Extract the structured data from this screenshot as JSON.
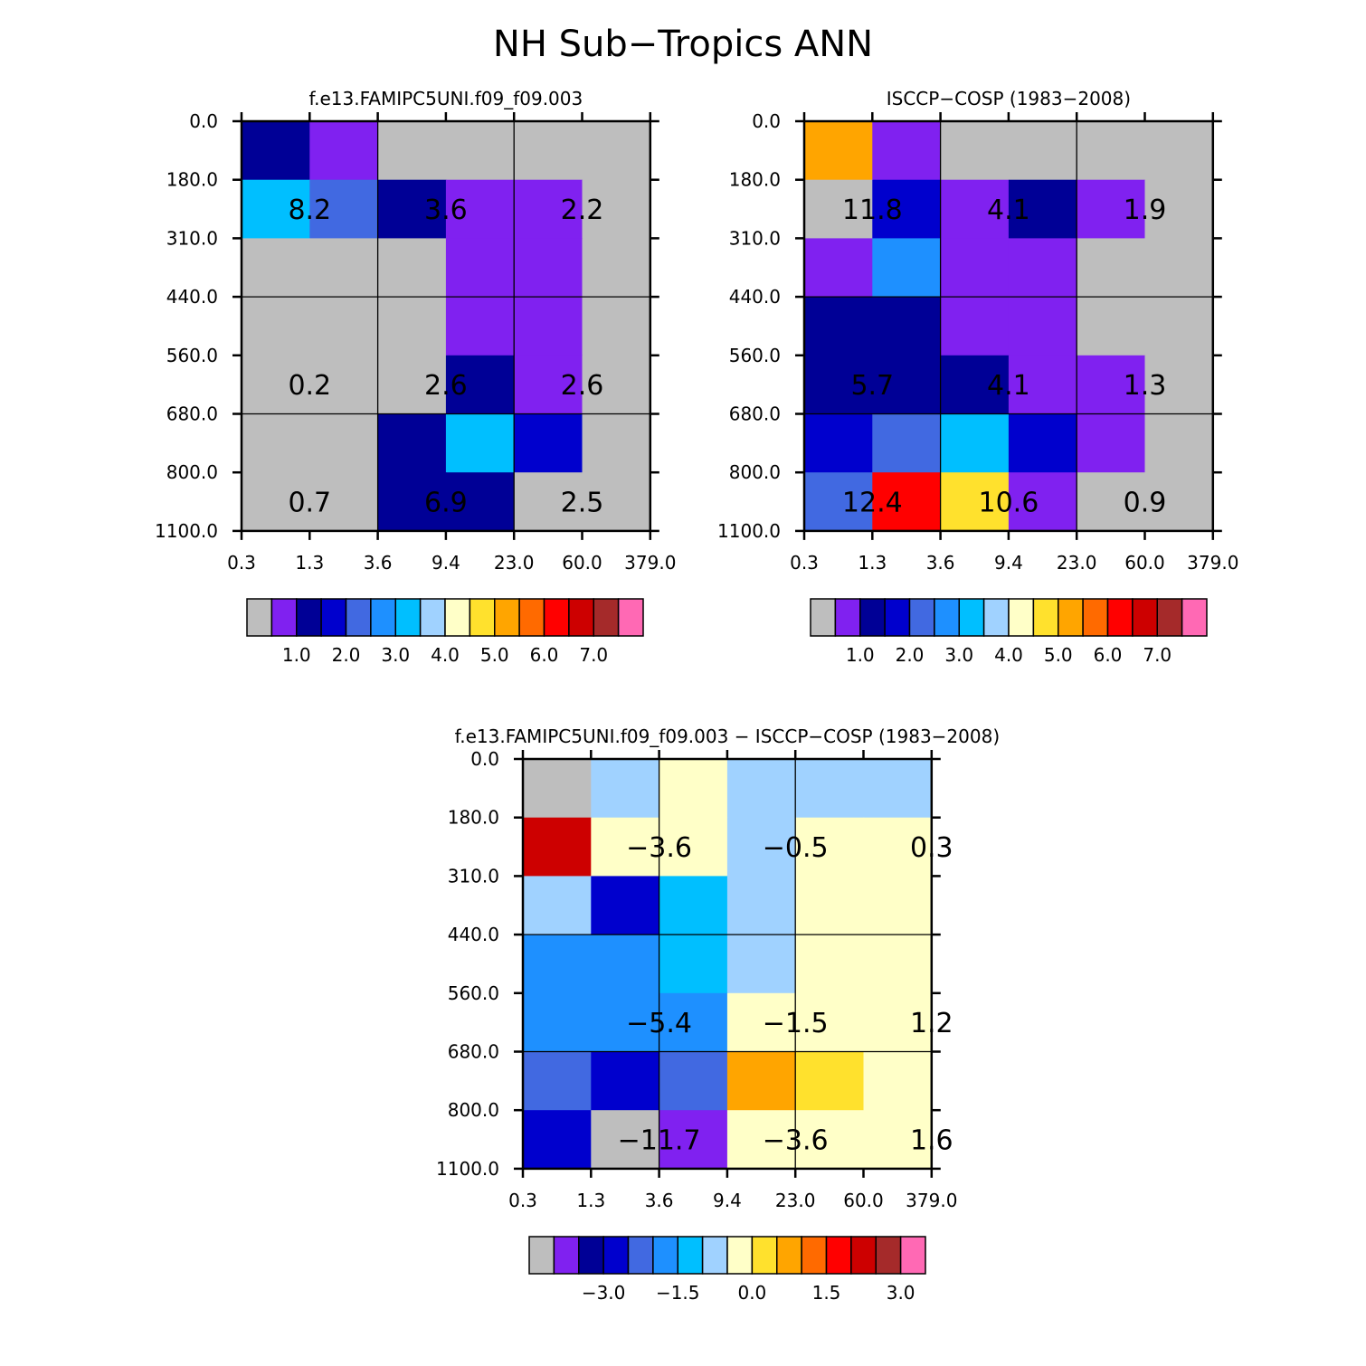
{
  "page_title": "NH Sub−Tropics ANN",
  "palette": [
    "#bebebe",
    "#8021f0",
    "#000096",
    "#0000cd",
    "#4169e1",
    "#1e90ff",
    "#00bfff",
    "#a0d2ff",
    "#ffffc8",
    "#ffe12d",
    "#ffa500",
    "#ff6a00",
    "#ff0000",
    "#cd0000",
    "#a52a2a",
    "#ff69b4"
  ],
  "chart_data": [
    {
      "type": "heatmap",
      "title": "f.e13.FAMIPC5UNI.f09_f09.003",
      "x_tick_labels": [
        "0.3",
        "1.3",
        "3.6",
        "9.4",
        "23.0",
        "60.0",
        "379.0"
      ],
      "y_tick_labels": [
        "0.0",
        "180.0",
        "310.0",
        "440.0",
        "560.0",
        "680.0",
        "800.0",
        "1100.0"
      ],
      "cells": [
        [
          2,
          1,
          0,
          0,
          0,
          0
        ],
        [
          6,
          4,
          2,
          1,
          1,
          0
        ],
        [
          0,
          0,
          0,
          1,
          1,
          0
        ],
        [
          0,
          0,
          0,
          1,
          1,
          0
        ],
        [
          0,
          0,
          0,
          2,
          1,
          0
        ],
        [
          0,
          0,
          2,
          6,
          3,
          0
        ],
        [
          0,
          0,
          2,
          2,
          0,
          0
        ]
      ],
      "annotations": [
        {
          "row": 1,
          "col": 0,
          "text": "8.2"
        },
        {
          "row": 1,
          "col": 2,
          "text": "3.6"
        },
        {
          "row": 1,
          "col": 4,
          "text": "2.2"
        },
        {
          "row": 4,
          "col": 0,
          "text": "0.2"
        },
        {
          "row": 4,
          "col": 2,
          "text": "2.6"
        },
        {
          "row": 4,
          "col": 4,
          "text": "2.6"
        },
        {
          "row": 6,
          "col": 0,
          "text": "0.7"
        },
        {
          "row": 6,
          "col": 2,
          "text": "6.9"
        },
        {
          "row": 6,
          "col": 4,
          "text": "2.5"
        }
      ],
      "colorbar": {
        "labels": [
          "1.0",
          "2.0",
          "3.0",
          "4.0",
          "5.0",
          "6.0",
          "7.0"
        ]
      }
    },
    {
      "type": "heatmap",
      "title": "ISCCP−COSP (1983−2008)",
      "x_tick_labels": [
        "0.3",
        "1.3",
        "3.6",
        "9.4",
        "23.0",
        "60.0",
        "379.0"
      ],
      "y_tick_labels": [
        "0.0",
        "180.0",
        "310.0",
        "440.0",
        "560.0",
        "680.0",
        "800.0",
        "1100.0"
      ],
      "cells": [
        [
          10,
          1,
          0,
          0,
          0,
          0
        ],
        [
          0,
          3,
          1,
          2,
          1,
          0
        ],
        [
          1,
          5,
          1,
          1,
          0,
          0
        ],
        [
          2,
          2,
          1,
          1,
          0,
          0
        ],
        [
          2,
          2,
          2,
          1,
          1,
          0
        ],
        [
          3,
          4,
          6,
          3,
          1,
          0
        ],
        [
          4,
          12,
          9,
          1,
          0,
          0
        ]
      ],
      "annotations": [
        {
          "row": 1,
          "col": 0,
          "text": "11.8"
        },
        {
          "row": 1,
          "col": 2,
          "text": "4.1"
        },
        {
          "row": 1,
          "col": 4,
          "text": "1.9"
        },
        {
          "row": 4,
          "col": 0,
          "text": "5.7"
        },
        {
          "row": 4,
          "col": 2,
          "text": "4.1"
        },
        {
          "row": 4,
          "col": 4,
          "text": "1.3"
        },
        {
          "row": 6,
          "col": 0,
          "text": "12.4"
        },
        {
          "row": 6,
          "col": 2,
          "text": "10.6"
        },
        {
          "row": 6,
          "col": 4,
          "text": "0.9"
        }
      ],
      "colorbar": {
        "labels": [
          "1.0",
          "2.0",
          "3.0",
          "4.0",
          "5.0",
          "6.0",
          "7.0"
        ]
      }
    },
    {
      "type": "heatmap",
      "title": "f.e13.FAMIPC5UNI.f09_f09.003 − ISCCP−COSP (1983−2008)",
      "x_tick_labels": [
        "0.3",
        "1.3",
        "3.6",
        "9.4",
        "23.0",
        "60.0",
        "379.0"
      ],
      "y_tick_labels": [
        "0.0",
        "180.0",
        "310.0",
        "440.0",
        "560.0",
        "680.0",
        "800.0",
        "1100.0"
      ],
      "cells": [
        [
          0,
          7,
          8,
          7,
          7,
          7
        ],
        [
          13,
          8,
          8,
          7,
          8,
          8
        ],
        [
          7,
          3,
          6,
          7,
          8,
          8
        ],
        [
          5,
          5,
          6,
          7,
          8,
          8
        ],
        [
          5,
          5,
          5,
          8,
          8,
          8
        ],
        [
          4,
          3,
          4,
          10,
          9,
          8
        ],
        [
          3,
          0,
          1,
          8,
          8,
          8
        ]
      ],
      "annotations": [
        {
          "row": 1,
          "col": 1,
          "text": "−3.6"
        },
        {
          "row": 1,
          "col": 3,
          "text": "−0.5"
        },
        {
          "row": 1,
          "col": 5,
          "text": "0.3"
        },
        {
          "row": 4,
          "col": 1,
          "text": "−5.4"
        },
        {
          "row": 4,
          "col": 3,
          "text": "−1.5"
        },
        {
          "row": 4,
          "col": 5,
          "text": "1.2"
        },
        {
          "row": 6,
          "col": 1,
          "text": "−11.7"
        },
        {
          "row": 6,
          "col": 3,
          "text": "−3.6"
        },
        {
          "row": 6,
          "col": 5,
          "text": "1.6"
        }
      ],
      "colorbar": {
        "labels": [
          "−3.0",
          "−1.5",
          "0.0",
          "1.5",
          "3.0"
        ]
      }
    }
  ]
}
